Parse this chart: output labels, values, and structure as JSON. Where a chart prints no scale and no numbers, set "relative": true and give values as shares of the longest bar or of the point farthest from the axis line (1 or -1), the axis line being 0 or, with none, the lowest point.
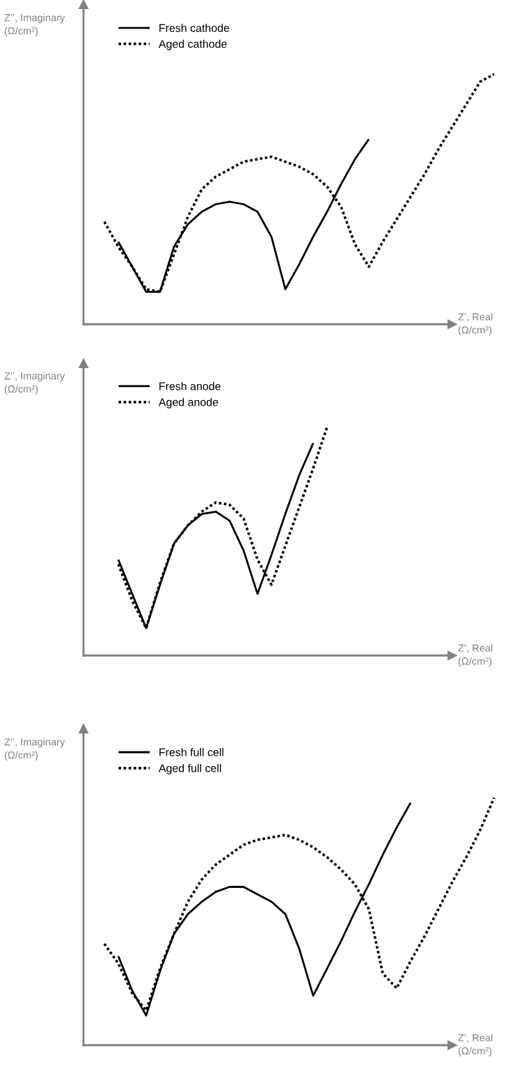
{
  "chart_data": [
    {
      "type": "line",
      "relative": true,
      "xlabel": "Z’, Real\n(Ω/cm²)",
      "ylabel": "Z’’, Imaginary\n(Ω/cm²)",
      "legend": "top left",
      "grid": false,
      "marker": "none",
      "categories": [
        null,
        null,
        null,
        null,
        null,
        null,
        null,
        null,
        null,
        null,
        null,
        null,
        null,
        null,
        null,
        null,
        null,
        null,
        null,
        null,
        null,
        null,
        null,
        null,
        null,
        null,
        null,
        null,
        null,
        null
      ],
      "series": [
        {
          "name": "Fresh cathode",
          "color": "#000000",
          "line_style": "solid",
          "values": [
            null,
            null,
            0.33,
            0.23,
            0.13,
            0.13,
            0.31,
            0.4,
            0.45,
            0.48,
            0.49,
            0.48,
            0.45,
            0.35,
            0.14,
            0.24,
            0.35,
            0.45,
            0.56,
            0.66,
            0.74,
            null,
            null,
            null,
            null,
            null,
            null,
            null,
            null,
            null
          ]
        },
        {
          "name": "Aged cathode",
          "color": "#000000",
          "line_style": "dotted",
          "values": [
            null,
            0.41,
            0.31,
            0.23,
            0.14,
            0.13,
            0.28,
            0.43,
            0.54,
            0.59,
            0.62,
            0.65,
            0.66,
            0.67,
            0.65,
            0.63,
            0.6,
            0.55,
            0.47,
            0.32,
            0.23,
            0.33,
            0.42,
            0.51,
            0.6,
            0.7,
            0.79,
            0.88,
            0.97,
            1
          ]
        }
      ]
    },
    {
      "type": "line",
      "relative": true,
      "xlabel": "Z’, Real\n(Ω/cm²)",
      "ylabel": "Z’’, Imaginary\n(Ω/cm²)",
      "legend": "top left",
      "grid": false,
      "marker": "none",
      "categories": [
        null,
        null,
        null,
        null,
        null,
        null,
        null,
        null,
        null,
        null,
        null,
        null,
        null,
        null,
        null,
        null,
        null,
        null,
        null,
        null,
        null,
        null,
        null,
        null,
        null,
        null,
        null,
        null,
        null,
        null
      ],
      "series": [
        {
          "name": "Fresh anode",
          "color": "#000000",
          "line_style": "solid",
          "values": [
            null,
            null,
            0.42,
            0.27,
            0.12,
            0.31,
            0.49,
            0.57,
            0.62,
            0.63,
            0.59,
            0.46,
            0.27,
            0.44,
            0.62,
            0.79,
            0.93,
            null,
            null,
            null,
            null,
            null,
            null,
            null,
            null,
            null,
            null,
            null,
            null,
            null
          ]
        },
        {
          "name": "Aged anode",
          "color": "#000000",
          "line_style": "dotted",
          "values": [
            null,
            null,
            0.4,
            0.24,
            0.12,
            0.32,
            0.49,
            0.57,
            0.63,
            0.67,
            0.66,
            0.6,
            0.42,
            0.31,
            0.48,
            0.65,
            0.82,
            1,
            null,
            null,
            null,
            null,
            null,
            null,
            null,
            null,
            null,
            null,
            null,
            null
          ]
        }
      ]
    },
    {
      "type": "line",
      "relative": true,
      "xlabel": "Z’, Real\n(Ω/cm²)",
      "ylabel": "Z’’, Imaginary\n(Ω/cm²)",
      "legend": "top left",
      "grid": false,
      "marker": "none",
      "categories": [
        null,
        null,
        null,
        null,
        null,
        null,
        null,
        null,
        null,
        null,
        null,
        null,
        null,
        null,
        null,
        null,
        null,
        null,
        null,
        null,
        null,
        null,
        null,
        null,
        null,
        null,
        null,
        null,
        null,
        null
      ],
      "series": [
        {
          "name": "Fresh full cell",
          "color": "#000000",
          "line_style": "solid",
          "values": [
            null,
            null,
            0.36,
            0.22,
            0.12,
            0.3,
            0.45,
            0.53,
            0.58,
            0.62,
            0.64,
            0.64,
            0.61,
            0.58,
            0.53,
            0.39,
            0.2,
            0.31,
            0.42,
            0.54,
            0.65,
            0.77,
            0.88,
            0.98,
            null,
            null,
            null,
            null,
            null,
            null
          ]
        },
        {
          "name": "Aged full cell",
          "color": "#000000",
          "line_style": "dotted",
          "values": [
            null,
            0.41,
            0.33,
            0.21,
            0.14,
            0.31,
            0.45,
            0.58,
            0.67,
            0.73,
            0.77,
            0.81,
            0.83,
            0.84,
            0.85,
            0.83,
            0.8,
            0.76,
            0.71,
            0.65,
            0.55,
            0.29,
            0.23,
            0.34,
            0.44,
            0.55,
            0.66,
            0.76,
            0.87,
            1
          ]
        }
      ]
    }
  ]
}
